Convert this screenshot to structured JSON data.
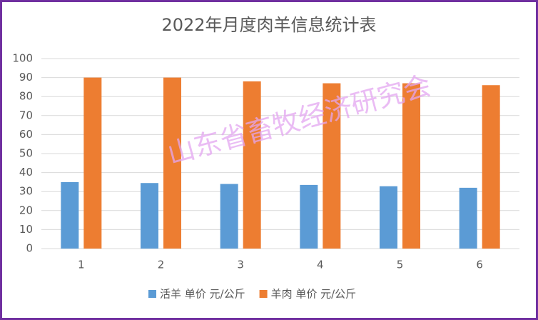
{
  "chart_data": {
    "type": "bar",
    "title": "2022年月度肉羊信息统计表",
    "categories": [
      "1",
      "2",
      "3",
      "4",
      "5",
      "6"
    ],
    "series": [
      {
        "name": "活羊 单价 元/公斤",
        "color": "#5b9bd5",
        "values": [
          35,
          34.5,
          34,
          33.5,
          32.8,
          32
        ]
      },
      {
        "name": "羊肉 单价 元/公斤",
        "color": "#ed7d31",
        "values": [
          90,
          90,
          88,
          87,
          87,
          86
        ]
      }
    ],
    "ylim": [
      0,
      100
    ],
    "yticks": [
      0,
      10,
      20,
      30,
      40,
      50,
      60,
      70,
      80,
      90,
      100
    ],
    "grid": true,
    "legend": "bottom",
    "watermark": "山东省畜牧经济研究会"
  }
}
